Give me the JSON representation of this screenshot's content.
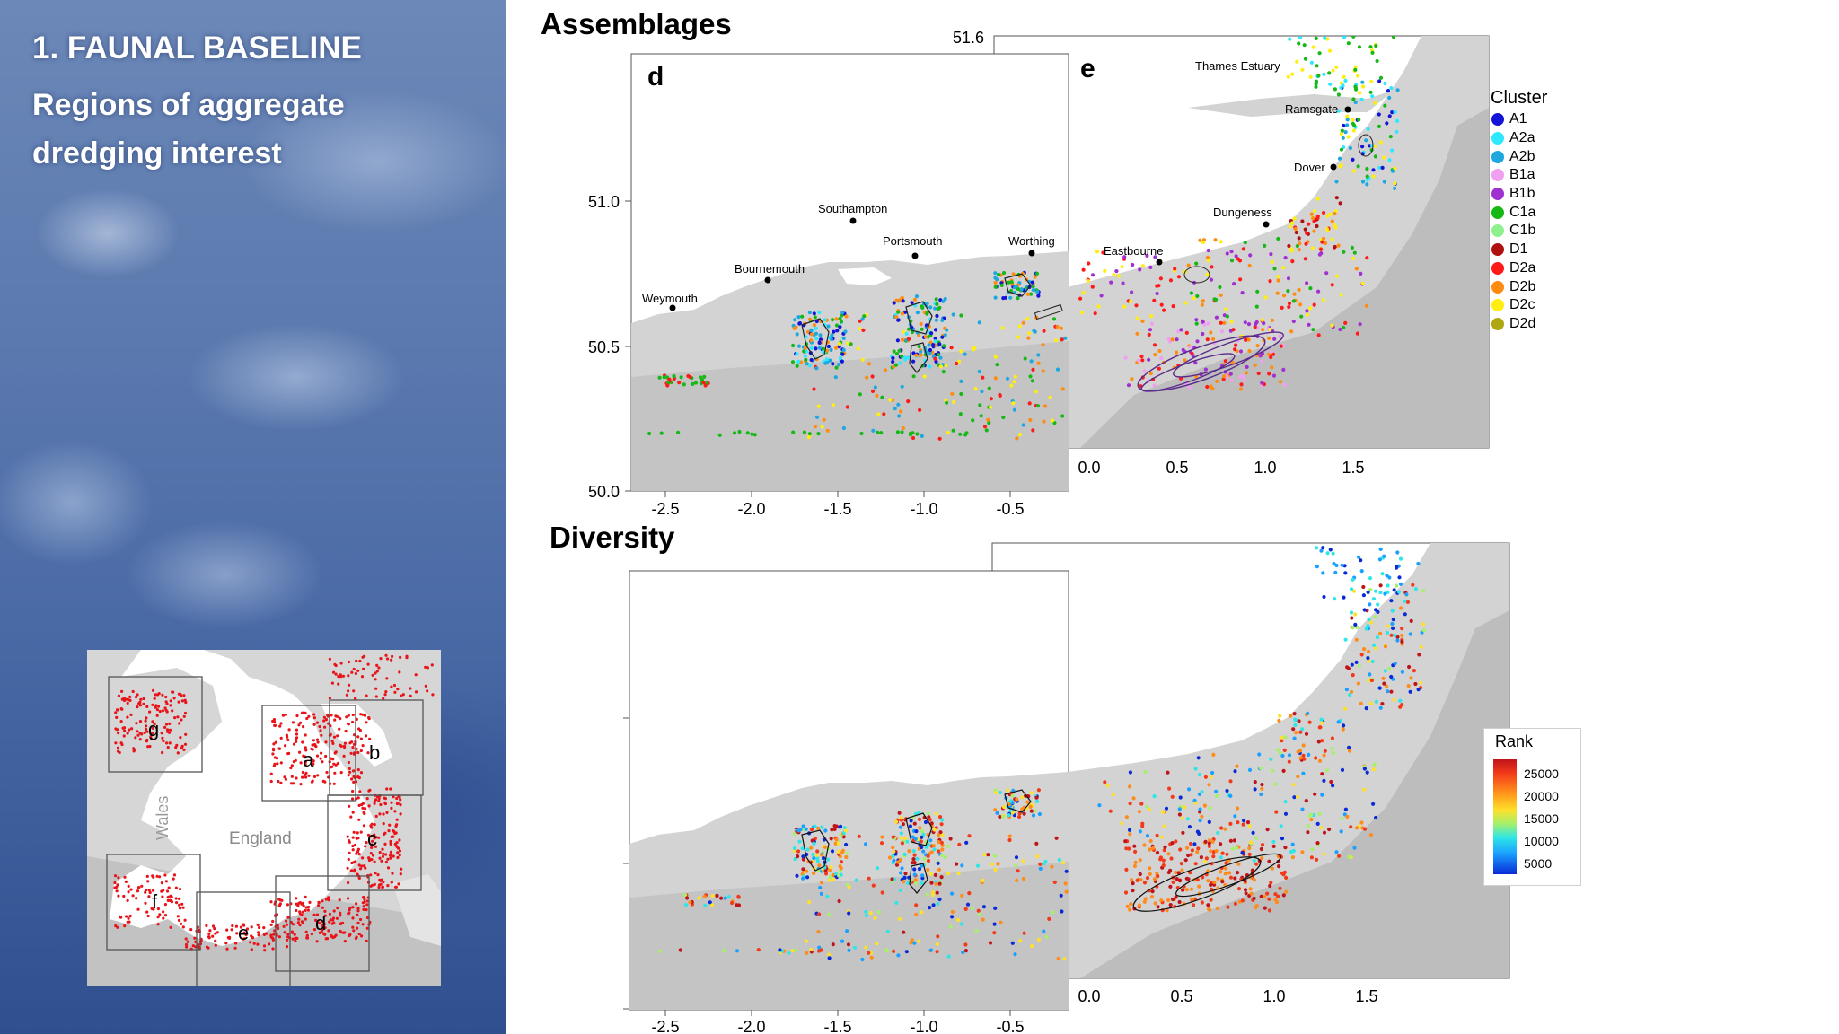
{
  "slide": {
    "title": "1. FAUNAL BASELINE",
    "subtitle": "Regions of aggregate dredging interest"
  },
  "inset_map": {
    "box_labels": [
      "a",
      "b",
      "c",
      "d",
      "e",
      "f",
      "g"
    ],
    "region_labels": [
      "Wales",
      "England"
    ],
    "dot_color": "#e8141a"
  },
  "assemblages": {
    "heading": "Assemblages",
    "panel_d_label": "d",
    "panel_e_label": "e",
    "lat_ticks": [
      "51.6",
      "51.0",
      "50.5",
      "50.0"
    ],
    "lon_ticks_d": [
      "-2.5",
      "-2.0",
      "-1.5",
      "-1.0",
      "-0.5"
    ],
    "lon_ticks_e": [
      "0.0",
      "0.5",
      "1.0",
      "1.5"
    ],
    "places": [
      "Weymouth",
      "Bournemouth",
      "Southampton",
      "Portsmouth",
      "Worthing",
      "Eastbourne",
      "Dungeness",
      "Dover",
      "Ramsgate",
      "Thames Estuary"
    ]
  },
  "diversity": {
    "heading": "Diversity",
    "lon_ticks_d": [
      "-2.5",
      "-2.0",
      "-1.5",
      "-1.0",
      "-0.5"
    ],
    "lon_ticks_e": [
      "0.0",
      "0.5",
      "1.0",
      "1.5"
    ]
  },
  "cluster_legend": {
    "title": "Cluster",
    "items": [
      {
        "label": "A1",
        "color": "#1414d8"
      },
      {
        "label": "A2a",
        "color": "#2ee8ff"
      },
      {
        "label": "A2b",
        "color": "#1ea8e0"
      },
      {
        "label": "B1a",
        "color": "#f0a0f0"
      },
      {
        "label": "B1b",
        "color": "#a030d0"
      },
      {
        "label": "C1a",
        "color": "#16b816"
      },
      {
        "label": "C1b",
        "color": "#8ef08e"
      },
      {
        "label": "D1",
        "color": "#b01010"
      },
      {
        "label": "D2a",
        "color": "#ff1a1a"
      },
      {
        "label": "D2b",
        "color": "#ff8c10"
      },
      {
        "label": "D2c",
        "color": "#ffee10"
      },
      {
        "label": "D2d",
        "color": "#b0a810"
      }
    ]
  },
  "rank_legend": {
    "title": "Rank",
    "ticks": [
      "25000",
      "20000",
      "15000",
      "10000",
      "5000"
    ]
  }
}
